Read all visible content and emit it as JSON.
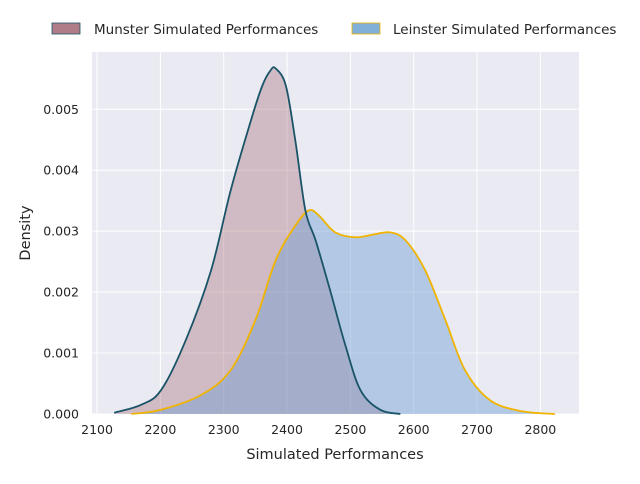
{
  "chart_data": {
    "type": "area",
    "title": "",
    "xlabel": "Simulated Performances",
    "ylabel": "Density",
    "xlim": [
      2092,
      2861
    ],
    "ylim": [
      0,
      0.00594
    ],
    "xticks": [
      2100,
      2200,
      2300,
      2400,
      2500,
      2600,
      2700,
      2800
    ],
    "xtick_labels": [
      "2100",
      "2200",
      "2300",
      "2400",
      "2500",
      "2600",
      "2700",
      "2800"
    ],
    "yticks": [
      0,
      0.001,
      0.002,
      0.003,
      0.004,
      0.005
    ],
    "ytick_labels": [
      "0.000",
      "0.001",
      "0.002",
      "0.003",
      "0.004",
      "0.005"
    ],
    "grid": true,
    "legend_position": "top-center",
    "series": [
      {
        "name": "Munster Simulated Performances",
        "fill": "#a0606e",
        "line": "#1a5468",
        "legend_patch": "#b07c88",
        "x": [
          2127,
          2169,
          2201,
          2240,
          2280,
          2311,
          2343,
          2361,
          2374,
          2382,
          2398,
          2413,
          2429,
          2445,
          2468,
          2492,
          2516,
          2547,
          2579
        ],
        "y": [
          2e-05,
          0.00015,
          0.00039,
          0.00121,
          0.00236,
          0.00367,
          0.00482,
          0.00539,
          0.00564,
          0.00567,
          0.00539,
          0.00449,
          0.00334,
          0.00285,
          0.00203,
          0.00113,
          0.00039,
          7e-05,
          0.0
        ]
      },
      {
        "name": "Leinster Simulated Performances",
        "fill": "#6fa0d2",
        "line": "#f0b400",
        "legend_patch": "#80afd7",
        "x": [
          2154,
          2201,
          2264,
          2311,
          2350,
          2382,
          2413,
          2434,
          2450,
          2476,
          2508,
          2539,
          2563,
          2587,
          2618,
          2650,
          2681,
          2720,
          2768,
          2823
        ],
        "y": [
          0.0,
          7e-05,
          0.00031,
          0.00072,
          0.00154,
          0.00252,
          0.00309,
          0.00334,
          0.00326,
          0.00298,
          0.0029,
          0.00295,
          0.00298,
          0.00285,
          0.00236,
          0.00154,
          0.00072,
          0.00023,
          5e-05,
          0.0
        ]
      }
    ]
  }
}
